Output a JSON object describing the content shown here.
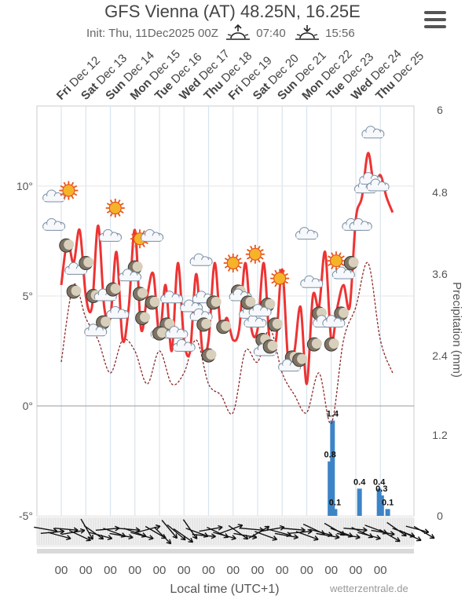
{
  "header": {
    "title": "GFS Vienna (AT) 48.25N, 16.25E",
    "init": "Init: Thu, 11Dec2025 00Z",
    "sunrise": "07:40",
    "sunset": "15:56"
  },
  "menu_icon": "hamburger-menu-icon",
  "credit": "wetterzentrale.de",
  "chart_data": {
    "type": "line",
    "title": "GFS Vienna (AT) 48.25N, 16.25E",
    "days": [
      {
        "wd": "Fri",
        "d": "Dec 12"
      },
      {
        "wd": "Sat",
        "d": "Dec 13"
      },
      {
        "wd": "Sun",
        "d": "Dec 14"
      },
      {
        "wd": "Mon",
        "d": "Dec 15"
      },
      {
        "wd": "Tue",
        "d": "Dec 16"
      },
      {
        "wd": "Wed",
        "d": "Dec 17"
      },
      {
        "wd": "Thu",
        "d": "Dec 18"
      },
      {
        "wd": "Fri",
        "d": "Dec 19"
      },
      {
        "wd": "Sat",
        "d": "Dec 20"
      },
      {
        "wd": "Sun",
        "d": "Dec 21"
      },
      {
        "wd": "Mon",
        "d": "Dec 22"
      },
      {
        "wd": "Tue",
        "d": "Dec 23"
      },
      {
        "wd": "Wed",
        "d": "Dec 24"
      },
      {
        "wd": "Thu",
        "d": "Dec 25"
      }
    ],
    "xlabel": "Local time (UTC+1)",
    "x_tick_label": "00",
    "y_left": {
      "ticks": [
        "10°",
        "5°",
        "0°",
        "-5°"
      ],
      "values": [
        10,
        5,
        0,
        -5
      ],
      "range": [
        -5,
        13.5
      ]
    },
    "y_right": {
      "label": "Precipitation (mm)",
      "ticks": [
        "6",
        "4.8",
        "3.6",
        "2.4",
        "1.2",
        "0"
      ]
    },
    "series": [
      {
        "color": "#ee3333",
        "x_days": [
          0,
          0.25,
          0.5,
          0.75,
          1,
          1.25,
          1.5,
          1.75,
          2,
          2.25,
          2.5,
          2.75,
          3,
          3.25,
          3.5,
          3.75,
          4,
          4.25,
          4.5,
          4.75,
          5,
          5.25,
          5.5,
          5.75,
          6,
          6.25,
          6.5,
          6.75,
          7,
          7.25,
          7.5,
          7.75,
          8,
          8.25,
          8.5,
          8.75,
          9,
          9.25,
          9.5,
          9.75,
          10,
          10.25,
          10.5,
          10.75,
          11,
          11.25,
          11.5,
          11.75,
          12,
          12.25,
          12.5,
          12.75,
          13,
          13.25,
          13.5
        ],
        "values": [
          5.5,
          7.5,
          6.5,
          8,
          5,
          4.5,
          8.2,
          4.5,
          4,
          7,
          3,
          4.5,
          8,
          3.5,
          5,
          6,
          3.2,
          5.5,
          2.5,
          6.5,
          3,
          2.5,
          6,
          2.5,
          3,
          6.5,
          3.5,
          4,
          3,
          3.5,
          6.5,
          3.5,
          3.5,
          6.5,
          2.8,
          3,
          6.2,
          2,
          2.5,
          4.5,
          1,
          5,
          4.5,
          7,
          3,
          4.5,
          5.5,
          4.5,
          8.5,
          9.5,
          11.5,
          10,
          10.5,
          9.5,
          8.8
        ]
      },
      {
        "color": "#8b2a2a",
        "style": "dashed",
        "x_days": [
          0,
          0.5,
          1,
          1.5,
          2,
          2.5,
          3,
          3.5,
          4,
          4.5,
          5,
          5.5,
          6,
          6.5,
          7,
          7.5,
          8,
          8.5,
          9,
          9.5,
          10,
          10.5,
          11,
          11.5,
          12,
          12.5,
          13,
          13.5
        ],
        "values": [
          2,
          5.5,
          4,
          3,
          1.5,
          3,
          2.5,
          1,
          2.5,
          1,
          1.5,
          3,
          1,
          0.5,
          -0.3,
          2.5,
          2,
          3.5,
          1.5,
          0.5,
          -0.3,
          1.5,
          -0.8,
          3,
          4.5,
          6.5,
          3,
          1.5
        ]
      }
    ],
    "precipitation": {
      "labels": [
        "1.4",
        "0.8",
        "0.1",
        "0.4",
        "0.4",
        "0.3",
        "0.1"
      ],
      "bars": [
        {
          "day": 10.95,
          "value": 0.8
        },
        {
          "day": 11.05,
          "value": 1.4
        },
        {
          "day": 11.15,
          "value": 0.1
        },
        {
          "day": 12.15,
          "value": 0.4
        },
        {
          "day": 12.95,
          "value": 0.4
        },
        {
          "day": 13.05,
          "value": 0.3
        },
        {
          "day": 13.3,
          "value": 0.1
        }
      ]
    },
    "weather_icons": [
      {
        "kind": "cloud",
        "day": -0.3,
        "temp": 9.5
      },
      {
        "kind": "sun",
        "day": 0.3,
        "temp": 9.8
      },
      {
        "kind": "cloud",
        "day": -0.3,
        "temp": 8.2
      },
      {
        "kind": "moon",
        "day": 0.2,
        "temp": 7.3
      },
      {
        "kind": "cloud",
        "day": 0.6,
        "temp": 6.2
      },
      {
        "kind": "moon",
        "day": 1.0,
        "temp": 6.5
      },
      {
        "kind": "moon",
        "day": 0.5,
        "temp": 5.2
      },
      {
        "kind": "moon",
        "day": 1.3,
        "temp": 5.0
      },
      {
        "kind": "sun",
        "day": 2.2,
        "temp": 9.0
      },
      {
        "kind": "cloud",
        "day": 2.0,
        "temp": 7.7
      },
      {
        "kind": "cloud",
        "day": 1.8,
        "temp": 5.0
      },
      {
        "kind": "moon",
        "day": 2.1,
        "temp": 5.3
      },
      {
        "kind": "cloud",
        "day": 2.3,
        "temp": 4.2
      },
      {
        "kind": "moon",
        "day": 1.7,
        "temp": 3.8
      },
      {
        "kind": "cloud",
        "day": 1.4,
        "temp": 3.4
      },
      {
        "kind": "sun",
        "day": 3.2,
        "temp": 7.6
      },
      {
        "kind": "cloud",
        "day": 3.7,
        "temp": 7.7
      },
      {
        "kind": "moon",
        "day": 3.0,
        "temp": 6.3
      },
      {
        "kind": "cloud",
        "day": 2.8,
        "temp": 5.9
      },
      {
        "kind": "moon",
        "day": 3.2,
        "temp": 5.1
      },
      {
        "kind": "moon",
        "day": 3.7,
        "temp": 4.7
      },
      {
        "kind": "moon",
        "day": 3.3,
        "temp": 4.0
      },
      {
        "kind": "cloud",
        "day": 4.5,
        "temp": 4.9
      },
      {
        "kind": "cloud",
        "day": 4.1,
        "temp": 3.3
      },
      {
        "kind": "moon",
        "day": 4.3,
        "temp": 3.7
      },
      {
        "kind": "moon",
        "day": 4.0,
        "temp": 3.3
      },
      {
        "kind": "cloud",
        "day": 4.7,
        "temp": 3.3
      },
      {
        "kind": "cloud",
        "day": 5.0,
        "temp": 2.7
      },
      {
        "kind": "cloud",
        "day": 5.7,
        "temp": 6.6
      },
      {
        "kind": "cloud",
        "day": 5.8,
        "temp": 4.9
      },
      {
        "kind": "cloud",
        "day": 5.3,
        "temp": 4.5
      },
      {
        "kind": "cloud",
        "day": 5.7,
        "temp": 4.1
      },
      {
        "kind": "moon",
        "day": 6.2,
        "temp": 4.7
      },
      {
        "kind": "moon",
        "day": 5.8,
        "temp": 3.7
      },
      {
        "kind": "moon",
        "day": 6.6,
        "temp": 3.6
      },
      {
        "kind": "moon",
        "day": 6.0,
        "temp": 2.3
      },
      {
        "kind": "sun",
        "day": 7.0,
        "temp": 6.5
      },
      {
        "kind": "sun",
        "day": 7.9,
        "temp": 6.9
      },
      {
        "kind": "sun",
        "day": 8.9,
        "temp": 5.8
      },
      {
        "kind": "moon",
        "day": 7.2,
        "temp": 5.2
      },
      {
        "kind": "cloud",
        "day": 7.3,
        "temp": 5.0
      },
      {
        "kind": "cloud",
        "day": 7.7,
        "temp": 4.2
      },
      {
        "kind": "moon",
        "day": 7.6,
        "temp": 4.7
      },
      {
        "kind": "cloud",
        "day": 7.9,
        "temp": 3.8
      },
      {
        "kind": "moon",
        "day": 8.4,
        "temp": 4.6
      },
      {
        "kind": "cloud",
        "day": 8.1,
        "temp": 4.3
      },
      {
        "kind": "moon",
        "day": 8.7,
        "temp": 3.7
      },
      {
        "kind": "moon",
        "day": 8.2,
        "temp": 3.0
      },
      {
        "kind": "cloud",
        "day": 8.3,
        "temp": 2.5
      },
      {
        "kind": "moon",
        "day": 8.5,
        "temp": 2.7
      },
      {
        "kind": "moon",
        "day": 9.4,
        "temp": 2.2
      },
      {
        "kind": "cloud",
        "day": 9.3,
        "temp": 1.8
      },
      {
        "kind": "moon",
        "day": 9.7,
        "temp": 2.1
      },
      {
        "kind": "cloud",
        "day": 10.0,
        "temp": 7.8
      },
      {
        "kind": "cloud",
        "day": 10.2,
        "temp": 5.6
      },
      {
        "kind": "moon",
        "day": 10.5,
        "temp": 4.2
      },
      {
        "kind": "cloud",
        "day": 10.7,
        "temp": 3.8
      },
      {
        "kind": "moon",
        "day": 10.3,
        "temp": 2.8
      },
      {
        "kind": "sun",
        "day": 11.2,
        "temp": 6.6
      },
      {
        "kind": "moon",
        "day": 11.4,
        "temp": 4.2
      },
      {
        "kind": "cloud",
        "day": 11.1,
        "temp": 3.8
      },
      {
        "kind": "moon",
        "day": 11.0,
        "temp": 2.8
      },
      {
        "kind": "cloud",
        "day": 11.5,
        "temp": 6.0
      },
      {
        "kind": "moon",
        "day": 11.8,
        "temp": 6.5
      },
      {
        "kind": "cloud",
        "day": 11.9,
        "temp": 8.2
      },
      {
        "kind": "cloud",
        "day": 12.2,
        "temp": 8.2
      },
      {
        "kind": "cloud",
        "day": 12.4,
        "temp": 9.9
      },
      {
        "kind": "cloud",
        "day": 12.6,
        "temp": 10.3
      },
      {
        "kind": "cloud",
        "day": 12.9,
        "temp": 10.0
      },
      {
        "kind": "cloud",
        "day": 12.7,
        "temp": 12.4
      }
    ],
    "wind_arrows_count": 56
  }
}
